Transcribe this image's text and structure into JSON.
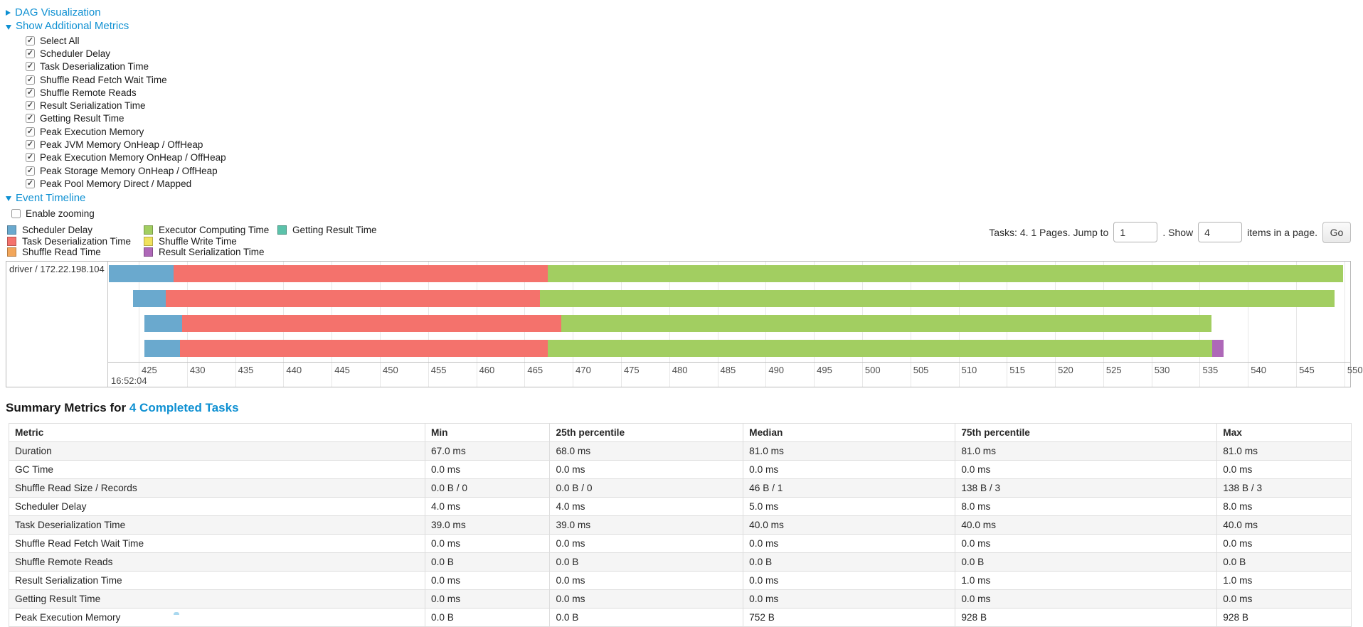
{
  "controls": {
    "dag": {
      "label": "DAG Visualization"
    },
    "show_metrics": {
      "label": "Show Additional Metrics"
    },
    "metrics_checkboxes": [
      {
        "label": "Select All",
        "checked": true
      },
      {
        "label": "Scheduler Delay",
        "checked": true
      },
      {
        "label": "Task Deserialization Time",
        "checked": true
      },
      {
        "label": "Shuffle Read Fetch Wait Time",
        "checked": true
      },
      {
        "label": "Shuffle Remote Reads",
        "checked": true
      },
      {
        "label": "Result Serialization Time",
        "checked": true
      },
      {
        "label": "Getting Result Time",
        "checked": true
      },
      {
        "label": "Peak Execution Memory",
        "checked": true
      },
      {
        "label": "Peak JVM Memory OnHeap / OffHeap",
        "checked": true
      },
      {
        "label": "Peak Execution Memory OnHeap / OffHeap",
        "checked": true
      },
      {
        "label": "Peak Storage Memory OnHeap / OffHeap",
        "checked": true
      },
      {
        "label": "Peak Pool Memory Direct / Mapped",
        "checked": true
      }
    ],
    "event_timeline": {
      "label": "Event Timeline"
    },
    "enable_zooming": {
      "label": "Enable zooming",
      "checked": false
    }
  },
  "legend": {
    "items": [
      {
        "key": "scheduler-delay",
        "label": "Scheduler Delay",
        "color": "#6AA9CE"
      },
      {
        "key": "task-deserialization-time",
        "label": "Task Deserialization Time",
        "color": "#F4726C"
      },
      {
        "key": "shuffle-read-time",
        "label": "Shuffle Read Time",
        "color": "#F2A65A"
      },
      {
        "key": "executor-computing-time",
        "label": "Executor Computing Time",
        "color": "#A2CE61"
      },
      {
        "key": "shuffle-write-time",
        "label": "Shuffle Write Time",
        "color": "#F0E25E"
      },
      {
        "key": "result-serialization-time",
        "label": "Result Serialization Time",
        "color": "#AE68B8"
      },
      {
        "key": "getting-result-time",
        "label": "Getting Result Time",
        "color": "#5BC2AA"
      }
    ]
  },
  "pagination": {
    "tasks_text": "Tasks: 4. 1 Pages. Jump to",
    "jump_value": "1",
    "show_text": ". Show",
    "show_value": "4",
    "items_text": "items in a page.",
    "go_label": "Go"
  },
  "timeline": {
    "row_label": "driver / 172.22.198.104",
    "axis": {
      "domain_min": 421.9,
      "domain_max": 550.6,
      "ticks": [
        425,
        430,
        435,
        440,
        445,
        450,
        455,
        460,
        465,
        470,
        475,
        480,
        485,
        490,
        495,
        500,
        505,
        510,
        515,
        520,
        525,
        530,
        535,
        540,
        545,
        550
      ],
      "major_label": "16:52:04",
      "units": "ms within second 16:52:04"
    },
    "colors": {
      "scheduler_delay": "#6AA9CE",
      "task_deserialization": "#F4726C",
      "shuffle_read": "#F2A65A",
      "executor_computing": "#A2CE61",
      "shuffle_write": "#F0E25E",
      "result_serialization": "#AE68B8",
      "getting_result": "#5BC2AA"
    },
    "tasks": [
      {
        "start": 421.9,
        "segments": [
          {
            "type": "scheduler_delay",
            "end": 428.6
          },
          {
            "type": "task_deserialization",
            "end": 467.4
          },
          {
            "type": "executor_computing",
            "end": 549.9
          }
        ]
      },
      {
        "start": 424.4,
        "segments": [
          {
            "type": "scheduler_delay",
            "end": 427.8
          },
          {
            "type": "task_deserialization",
            "end": 466.6
          },
          {
            "type": "executor_computing",
            "end": 549.0
          }
        ]
      },
      {
        "start": 425.6,
        "segments": [
          {
            "type": "scheduler_delay",
            "end": 429.5
          },
          {
            "type": "task_deserialization",
            "end": 468.8
          },
          {
            "type": "executor_computing",
            "end": 536.2
          }
        ]
      },
      {
        "start": 425.6,
        "segments": [
          {
            "type": "scheduler_delay",
            "end": 429.3
          },
          {
            "type": "task_deserialization",
            "end": 467.4
          },
          {
            "type": "executor_computing",
            "end": 536.3
          },
          {
            "type": "result_serialization",
            "end": 537.5
          }
        ]
      }
    ]
  },
  "summary": {
    "title_prefix": "Summary Metrics for",
    "link": "4 Completed Tasks"
  },
  "table": {
    "columns": [
      "Metric",
      "Min",
      "25th percentile",
      "Median",
      "75th percentile",
      "Max"
    ],
    "rows": [
      {
        "metric": "Duration",
        "values": [
          "67.0 ms",
          "68.0 ms",
          "81.0 ms",
          "81.0 ms",
          "81.0 ms"
        ]
      },
      {
        "metric": "GC Time",
        "values": [
          "0.0 ms",
          "0.0 ms",
          "0.0 ms",
          "0.0 ms",
          "0.0 ms"
        ]
      },
      {
        "metric": "Shuffle Read Size / Records",
        "values": [
          "0.0 B / 0",
          "0.0 B / 0",
          "46 B / 1",
          "138 B / 3",
          "138 B / 3"
        ]
      },
      {
        "metric": "Scheduler Delay",
        "values": [
          "4.0 ms",
          "4.0 ms",
          "5.0 ms",
          "8.0 ms",
          "8.0 ms"
        ]
      },
      {
        "metric": "Task Deserialization Time",
        "values": [
          "39.0 ms",
          "39.0 ms",
          "40.0 ms",
          "40.0 ms",
          "40.0 ms"
        ]
      },
      {
        "metric": "Shuffle Read Fetch Wait Time",
        "values": [
          "0.0 ms",
          "0.0 ms",
          "0.0 ms",
          "0.0 ms",
          "0.0 ms"
        ]
      },
      {
        "metric": "Shuffle Remote Reads",
        "values": [
          "0.0 B",
          "0.0 B",
          "0.0 B",
          "0.0 B",
          "0.0 B"
        ]
      },
      {
        "metric": "Result Serialization Time",
        "values": [
          "0.0 ms",
          "0.0 ms",
          "0.0 ms",
          "1.0 ms",
          "1.0 ms"
        ]
      },
      {
        "metric": "Getting Result Time",
        "values": [
          "0.0 ms",
          "0.0 ms",
          "0.0 ms",
          "0.0 ms",
          "0.0 ms"
        ]
      },
      {
        "metric": "Peak Execution Memory",
        "values": [
          "0.0 B",
          "0.0 B",
          "752 B",
          "928 B",
          "928 B"
        ]
      }
    ]
  }
}
